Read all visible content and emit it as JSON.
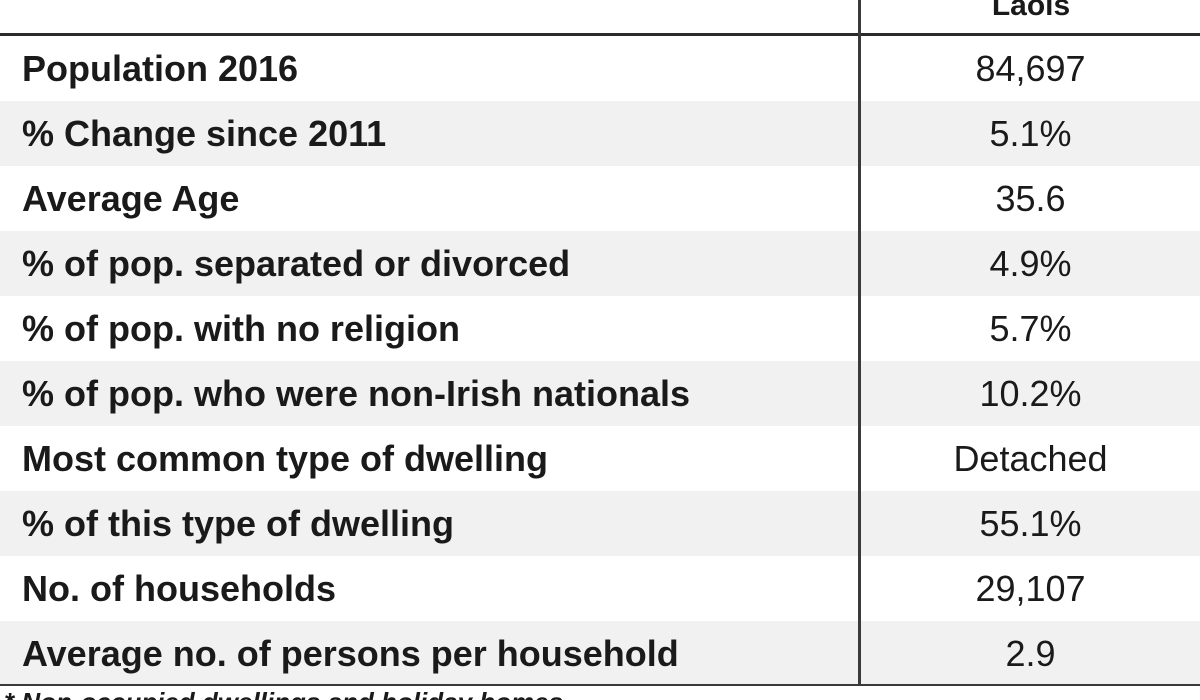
{
  "table": {
    "column_header": "Laois",
    "rows": [
      {
        "label": "Population 2016",
        "value": "84,697"
      },
      {
        "label": "% Change since 2011",
        "value": "5.1%"
      },
      {
        "label": "Average Age",
        "value": "35.6"
      },
      {
        "label": "% of pop. separated or divorced",
        "value": "4.9%"
      },
      {
        "label": "% of pop. with no religion",
        "value": "5.7%"
      },
      {
        "label": "% of pop. who were non-Irish nationals",
        "value": "10.2%"
      },
      {
        "label": "Most common type of dwelling",
        "value": "Detached"
      },
      {
        "label": "% of this type of dwelling",
        "value": "55.1%"
      },
      {
        "label": "No. of households",
        "value": "29,107"
      },
      {
        "label": "Average no. of persons per household",
        "value": "2.9"
      }
    ]
  },
  "footnote": "* Non-occupied dwellings and holiday homes"
}
